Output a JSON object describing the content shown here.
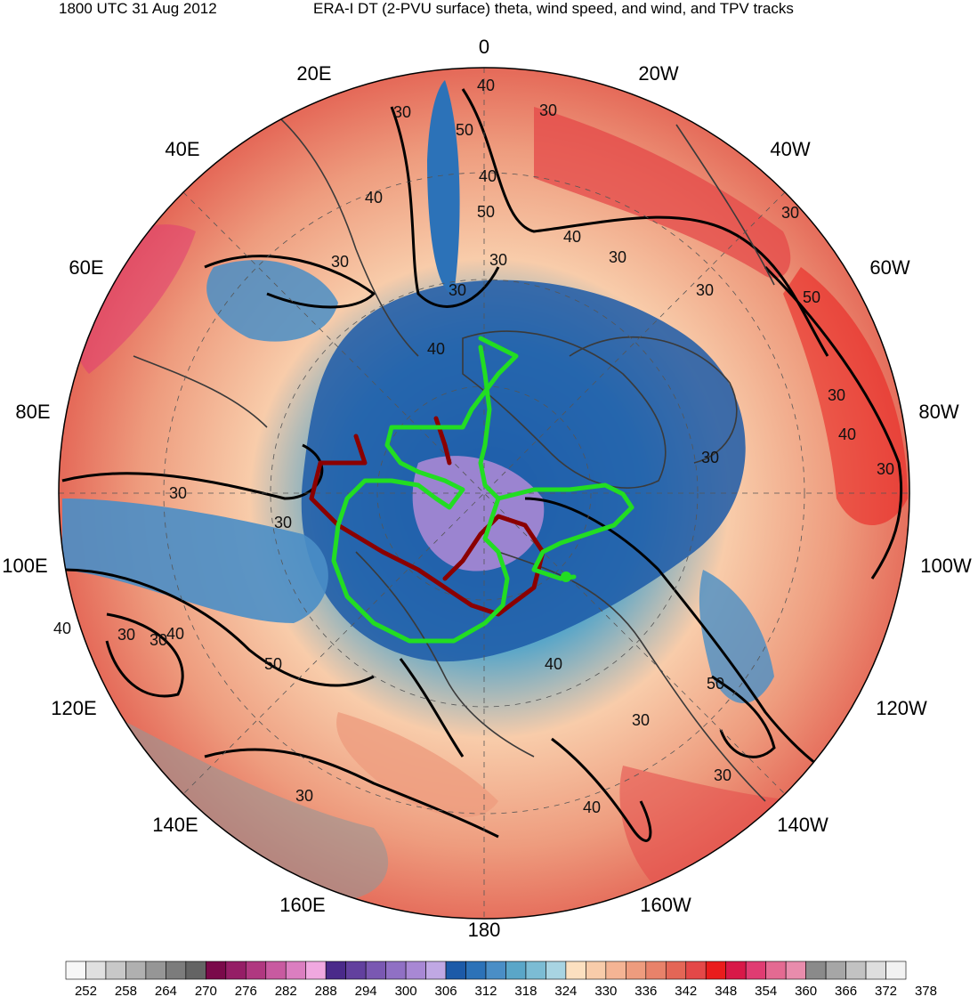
{
  "title": {
    "left": "1800 UTC 31 Aug 2012",
    "right": "ERA-I DT (2-PVU surface) theta, wind speed, and wind, and TPV tracks"
  },
  "longitude_labels": [
    "0",
    "20W",
    "40W",
    "60W",
    "80W",
    "100W",
    "120W",
    "140W",
    "160W",
    "180",
    "160E",
    "140E",
    "120E",
    "100E",
    "80E",
    "60E",
    "40E",
    "20E"
  ],
  "contour_labels": [
    "40",
    "50",
    "30",
    "30",
    "40",
    "50",
    "40",
    "30",
    "30",
    "40",
    "30",
    "30",
    "30",
    "50",
    "40",
    "30",
    "30",
    "40",
    "30",
    "30",
    "30",
    "30",
    "30",
    "40",
    "30",
    "40",
    "50",
    "40",
    "30",
    "50",
    "30",
    "40",
    "30"
  ],
  "colorbar": {
    "ticks": [
      "252",
      "258",
      "264",
      "270",
      "276",
      "282",
      "288",
      "294",
      "300",
      "306",
      "312",
      "318",
      "324",
      "330",
      "336",
      "342",
      "348",
      "354",
      "360",
      "366",
      "372",
      "378"
    ],
    "colors": [
      "#f7f7f7",
      "#e0e0e0",
      "#c8c8c8",
      "#b0b0b0",
      "#969696",
      "#7c7c7c",
      "#646464",
      "#7a0a4a",
      "#951e66",
      "#b03880",
      "#c85aa0",
      "#db7ec0",
      "#f0a8e0",
      "#4a2a8a",
      "#62409e",
      "#7a58b2",
      "#9070c4",
      "#a888d4",
      "#c0a8e4",
      "#1c5aa8",
      "#2c72b8",
      "#4a8ec6",
      "#5aa6c8",
      "#7cbcd4",
      "#a8d4e2",
      "#fce0c0",
      "#f8ccaa",
      "#f4b494",
      "#ee9c7e",
      "#e8826a",
      "#e46656",
      "#e44848",
      "#ea1c1c",
      "#d81848",
      "#e03c72",
      "#e46a92",
      "#e88cac",
      "#8a8a8a",
      "#a6a6a6",
      "#c2c2c2",
      "#dedede",
      "#f2f2f2"
    ]
  },
  "tracks": {
    "colors": {
      "active": "#22dd22",
      "past": "#8b0000"
    }
  }
}
